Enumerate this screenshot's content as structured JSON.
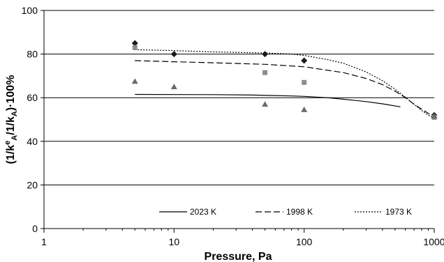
{
  "chart_data": {
    "type": "scatter",
    "title": "",
    "xlabel": "Pressure, Pa",
    "ylabel": "(1/k'A/1/kA)·100%",
    "x_scale": "log",
    "xlim": [
      1,
      1000
    ],
    "ylim": [
      0,
      100
    ],
    "x_ticks": [
      1,
      10,
      100,
      1000
    ],
    "y_ticks": [
      0,
      20,
      40,
      60,
      80,
      100
    ],
    "grid": "horizontal",
    "legend_position": "bottom",
    "series": [
      {
        "name": "2023 K",
        "kind": "line",
        "style": "solid",
        "x": [
          5,
          20,
          40,
          80,
          100,
          150,
          200,
          300,
          400,
          550
        ],
        "y": [
          61.5,
          61.4,
          61.2,
          60.8,
          60.6,
          60.0,
          59.3,
          58.2,
          57.2,
          55.8
        ]
      },
      {
        "name": "1998 K",
        "kind": "line",
        "style": "dashed",
        "x": [
          5,
          10,
          20,
          50,
          100,
          200,
          300,
          400,
          500,
          600,
          700,
          800,
          900,
          1000
        ],
        "y": [
          77.0,
          76.5,
          76.0,
          75.3,
          74.2,
          71.5,
          68.8,
          66.0,
          63.0,
          60.0,
          57.0,
          54.8,
          52.8,
          51.0
        ]
      },
      {
        "name": "1973 K",
        "kind": "line",
        "style": "dotted",
        "x": [
          5,
          10,
          20,
          50,
          80,
          100,
          150,
          200,
          300,
          400,
          500,
          600,
          700,
          800,
          900,
          1000
        ],
        "y": [
          82.0,
          81.6,
          81.0,
          80.5,
          80.0,
          79.4,
          77.5,
          75.8,
          71.8,
          67.8,
          63.9,
          60.2,
          57.0,
          54.2,
          52.0,
          50.5
        ]
      },
      {
        "name": "",
        "kind": "points",
        "marker": "diamond",
        "x": [
          5,
          10,
          50,
          100,
          1000
        ],
        "y": [
          85,
          80,
          80,
          77,
          52
        ]
      },
      {
        "name": "",
        "kind": "points",
        "marker": "square",
        "x": [
          5,
          50,
          100,
          1000
        ],
        "y": [
          83,
          71.5,
          67,
          51
        ]
      },
      {
        "name": "",
        "kind": "points",
        "marker": "triangle",
        "x": [
          5,
          10,
          50,
          100,
          1000
        ],
        "y": [
          67.5,
          65,
          57,
          54.5,
          51.5
        ]
      }
    ]
  }
}
